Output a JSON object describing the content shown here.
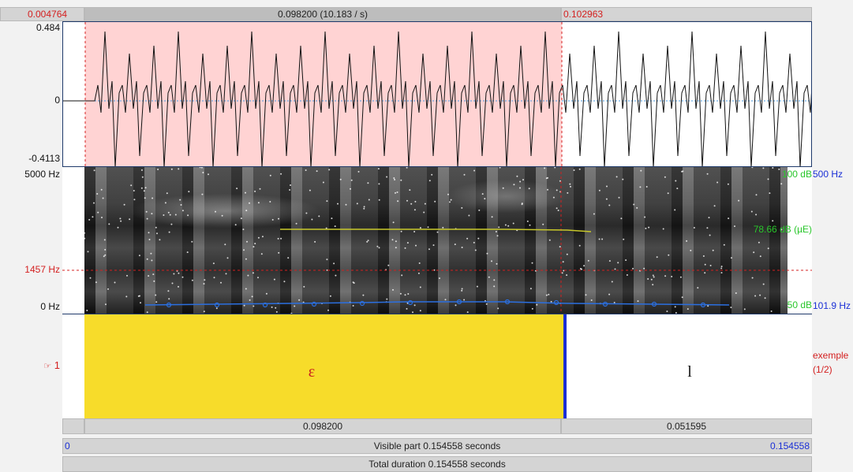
{
  "top_bar": {
    "left_time": "0.004764",
    "selection_duration": "0.098200 (10.183 / s)",
    "right_time": "0.102963"
  },
  "waveform": {
    "y_max": "0.484",
    "y_zero": "0",
    "y_min": "-0.4113"
  },
  "spectrogram": {
    "freq_top": "5000 Hz",
    "freq_cursor": "1457 Hz",
    "freq_bottom": "0 Hz",
    "intensity_top": "100 dB",
    "intensity_mid": "78.66 dB (µE)",
    "intensity_bottom": "50 dB",
    "pitch_top": "500 Hz",
    "pitch_bottom": "101.9 Hz"
  },
  "tier": {
    "number": "1",
    "name": "exemple",
    "count": "(1/2)",
    "interval_1": "ɛ",
    "interval_2": "l"
  },
  "bottom_bars": {
    "interval_1_duration": "0.098200",
    "interval_2_duration": "0.051595",
    "visible_start": "0",
    "visible_label": "Visible part 0.154558 seconds",
    "visible_end": "0.154558",
    "total_label": "Total duration 0.154558 seconds"
  },
  "colors": {
    "selection": "#ffd3d3",
    "tier_selected": "#f7dc2a",
    "boundary": "#1a2fd6",
    "cursor": "#d42020",
    "pitch": "#2b6fe0",
    "intensity": "#c8c82a"
  }
}
